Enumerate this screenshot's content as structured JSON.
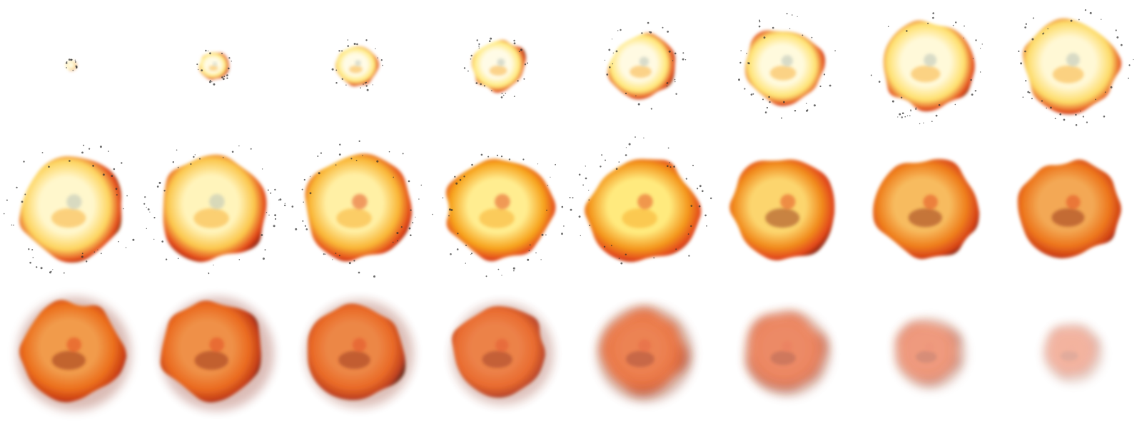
{
  "sprite_sheet": {
    "name": "explosion",
    "columns": 8,
    "rows": 3,
    "frame_count": 24,
    "background": "#ffffff",
    "palette": {
      "white_hot": "#fffbe6",
      "yellow": "#ffe97a",
      "orange": "#f7a31c",
      "red_orange": "#e2461a",
      "dark_red": "#8a2410",
      "smoke": "#3a1a0e",
      "speck": "#2b2b2b"
    },
    "frames": [
      {
        "index": 1,
        "phase": "flash",
        "scale": 0.08,
        "heat": 1.0,
        "fade": 1.0
      },
      {
        "index": 2,
        "phase": "flash",
        "scale": 0.22,
        "heat": 1.0,
        "fade": 1.0
      },
      {
        "index": 3,
        "phase": "expand",
        "scale": 0.32,
        "heat": 1.0,
        "fade": 1.0
      },
      {
        "index": 4,
        "phase": "expand",
        "scale": 0.42,
        "heat": 1.0,
        "fade": 1.0
      },
      {
        "index": 5,
        "phase": "expand",
        "scale": 0.52,
        "heat": 0.98,
        "fade": 1.0
      },
      {
        "index": 6,
        "phase": "expand",
        "scale": 0.62,
        "heat": 0.96,
        "fade": 1.0
      },
      {
        "index": 7,
        "phase": "expand",
        "scale": 0.7,
        "heat": 0.94,
        "fade": 1.0
      },
      {
        "index": 8,
        "phase": "expand",
        "scale": 0.74,
        "heat": 0.92,
        "fade": 1.0
      },
      {
        "index": 9,
        "phase": "fireball",
        "scale": 0.82,
        "heat": 0.88,
        "fade": 1.0
      },
      {
        "index": 10,
        "phase": "fireball",
        "scale": 0.84,
        "heat": 0.8,
        "fade": 1.0
      },
      {
        "index": 11,
        "phase": "fireball",
        "scale": 0.84,
        "heat": 0.7,
        "fade": 1.0
      },
      {
        "index": 12,
        "phase": "fireball",
        "scale": 0.84,
        "heat": 0.6,
        "fade": 1.0
      },
      {
        "index": 13,
        "phase": "fireball",
        "scale": 0.84,
        "heat": 0.52,
        "fade": 1.0
      },
      {
        "index": 14,
        "phase": "fireball",
        "scale": 0.82,
        "heat": 0.44,
        "fade": 1.0
      },
      {
        "index": 15,
        "phase": "fireball",
        "scale": 0.8,
        "heat": 0.36,
        "fade": 1.0
      },
      {
        "index": 16,
        "phase": "fireball",
        "scale": 0.78,
        "heat": 0.3,
        "fade": 1.0
      },
      {
        "index": 17,
        "phase": "burnout",
        "scale": 0.8,
        "heat": 0.26,
        "fade": 1.0
      },
      {
        "index": 18,
        "phase": "burnout",
        "scale": 0.8,
        "heat": 0.22,
        "fade": 0.98
      },
      {
        "index": 19,
        "phase": "burnout",
        "scale": 0.76,
        "heat": 0.18,
        "fade": 0.95
      },
      {
        "index": 20,
        "phase": "burnout",
        "scale": 0.72,
        "heat": 0.14,
        "fade": 0.9
      },
      {
        "index": 21,
        "phase": "dissipate",
        "scale": 0.68,
        "heat": 0.1,
        "fade": 0.82
      },
      {
        "index": 22,
        "phase": "dissipate",
        "scale": 0.6,
        "heat": 0.06,
        "fade": 0.7
      },
      {
        "index": 23,
        "phase": "dissipate",
        "scale": 0.5,
        "heat": 0.04,
        "fade": 0.58
      },
      {
        "index": 24,
        "phase": "dissipate",
        "scale": 0.42,
        "heat": 0.02,
        "fade": 0.42
      }
    ]
  }
}
